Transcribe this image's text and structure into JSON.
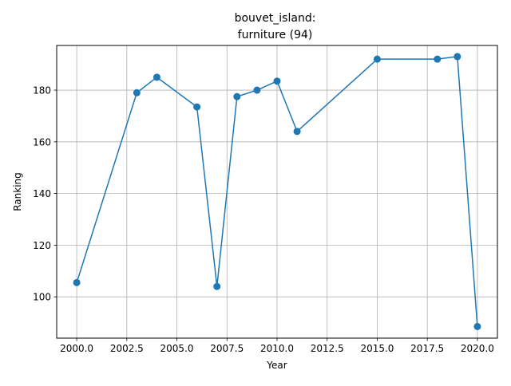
{
  "chart_data": {
    "type": "line",
    "title_line1": "bouvet_island:",
    "title_line2": "furniture (94)",
    "xlabel": "Year",
    "ylabel": "Ranking",
    "xlim": [
      1999.0,
      2021.0
    ],
    "ylim": [
      84.0,
      197.3
    ],
    "grid": true,
    "x_ticks": [
      2000.0,
      2002.5,
      2005.0,
      2007.5,
      2010.0,
      2012.5,
      2015.0,
      2017.5,
      2020.0
    ],
    "x_tick_labels": [
      "2000.0",
      "2002.5",
      "2005.0",
      "2007.5",
      "2010.0",
      "2012.5",
      "2015.0",
      "2017.5",
      "2020.0"
    ],
    "y_ticks": [
      100,
      120,
      140,
      160,
      180
    ],
    "y_tick_labels": [
      "100",
      "120",
      "140",
      "160",
      "180"
    ],
    "series": [
      {
        "color": "#1f77b4",
        "x": [
          2000,
          2003,
          2004,
          2006,
          2007,
          2008,
          2009,
          2010,
          2011,
          2015,
          2018,
          2019,
          2020
        ],
        "y": [
          105.5,
          179,
          185,
          173.5,
          104,
          177.5,
          180,
          183.5,
          164,
          192,
          192,
          193,
          88.5
        ]
      }
    ]
  }
}
